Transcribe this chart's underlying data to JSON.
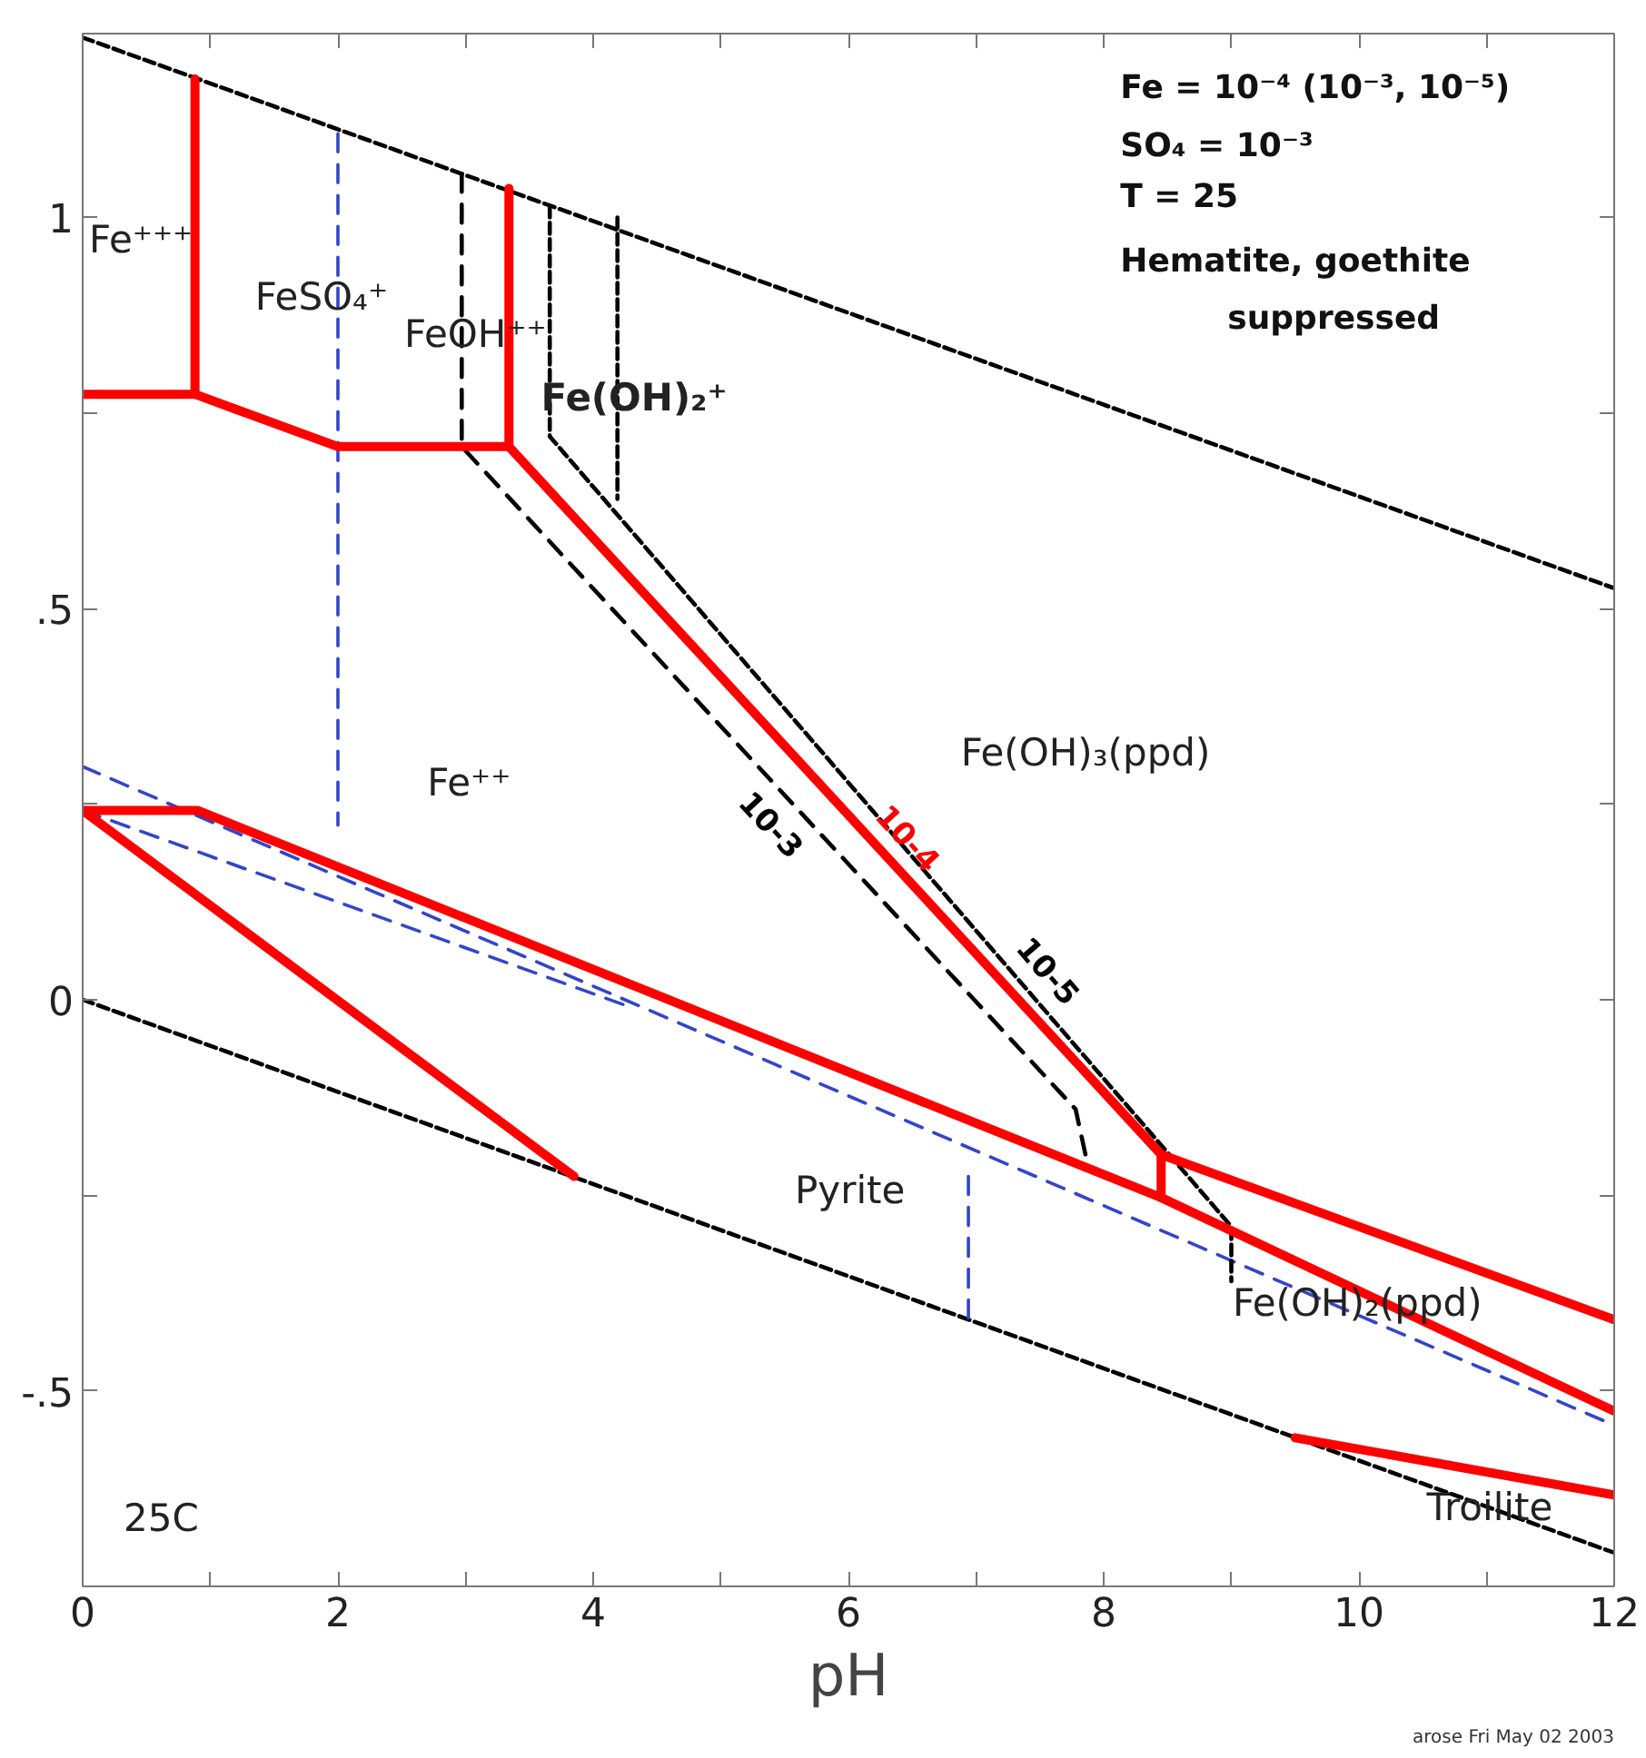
{
  "chart_data": {
    "type": "line",
    "xlabel": "pH",
    "xlim": [
      0,
      12
    ],
    "ylim": [
      -0.75,
      1.235
    ],
    "xticks": [
      0,
      {
        "value": 1,
        "label": null
      },
      2,
      {
        "value": 3,
        "label": null
      },
      4,
      {
        "value": 5,
        "label": null
      },
      6,
      {
        "value": 7,
        "label": null
      },
      8,
      {
        "value": 9,
        "label": null
      },
      10,
      {
        "value": 11,
        "label": null
      },
      12
    ],
    "yticks": [
      {
        "value": -0.75,
        "label": null
      },
      {
        "value": -0.5,
        "label": "-.5"
      },
      {
        "value": -0.25,
        "label": null
      },
      0,
      {
        "value": 0.25,
        "label": null
      },
      {
        "value": 0.5,
        "label": ".5"
      },
      {
        "value": 0.75,
        "label": null
      },
      1
    ],
    "grid": false,
    "series": [
      {
        "color": "#000000",
        "line_style": "dotted",
        "x": [
          0,
          12
        ],
        "values": [
          1.23,
          0.526
        ]
      },
      {
        "color": "#000000",
        "line_style": "dotted",
        "x": [
          0,
          12
        ],
        "values": [
          0,
          -0.707
        ]
      },
      {
        "color": "#3344cc",
        "line_style": "dashed",
        "x": [
          2,
          2
        ],
        "values": [
          1.107,
          0.223
        ]
      },
      {
        "color": "#3344cc",
        "line_style": "dashed",
        "x": [
          0,
          12
        ],
        "values": [
          0.298,
          -0.544
        ]
      },
      {
        "color": "#3344cc",
        "line_style": "dashed",
        "x": [
          0,
          4.3
        ],
        "values": [
          0.242,
          -0.01
        ]
      },
      {
        "color": "#3344cc",
        "line_style": "dashed",
        "x": [
          6.94,
          6.94
        ],
        "values": [
          -0.226,
          -0.41
        ]
      },
      {
        "name": "10-3",
        "color": "#000000",
        "line_style": "dashed",
        "x": [
          2.97,
          2.97,
          7.78,
          7.86
        ],
        "values": [
          1.056,
          0.707,
          -0.14,
          -0.2
        ]
      },
      {
        "name": "10-5",
        "color": "#000000",
        "line_style": "dotted",
        "x": [
          3.66,
          3.66,
          9.0,
          9.0
        ],
        "values": [
          1.014,
          0.72,
          -0.29,
          -0.36
        ]
      },
      {
        "color": "#000000",
        "line_style": "dotted",
        "x": [
          4.19,
          4.19
        ],
        "values": [
          1.0,
          0.64
        ]
      },
      {
        "color": "#ff0000",
        "line_style": "solid",
        "x": [
          0.88,
          0.88
        ],
        "values": [
          1.177,
          0.774
        ]
      },
      {
        "color": "#ff0000",
        "line_style": "solid",
        "x": [
          0,
          0.88,
          2,
          3.34
        ],
        "values": [
          0.774,
          0.774,
          0.707,
          0.707
        ]
      },
      {
        "color": "#ff0000",
        "line_style": "solid",
        "x": [
          3.34,
          3.34
        ],
        "values": [
          1.037,
          0.707
        ]
      },
      {
        "name": "10-4",
        "color": "#ff0000",
        "line_style": "solid",
        "x": [
          3.34,
          8.45
        ],
        "values": [
          0.707,
          -0.198
        ]
      },
      {
        "color": "#ff0000",
        "line_style": "solid",
        "x": [
          8.45,
          8.45
        ],
        "values": [
          -0.253,
          -0.198
        ]
      },
      {
        "color": "#ff0000",
        "line_style": "solid",
        "x": [
          8.45,
          12
        ],
        "values": [
          -0.198,
          -0.409
        ]
      },
      {
        "color": "#ff0000",
        "line_style": "solid",
        "x": [
          0,
          0.9,
          8.45,
          12
        ],
        "values": [
          0.242,
          0.242,
          -0.253,
          -0.526
        ]
      },
      {
        "color": "#ff0000",
        "line_style": "solid",
        "x": [
          0,
          3.85
        ],
        "values": [
          0.242,
          -0.226
        ]
      },
      {
        "color": "#ff0000",
        "line_style": "solid",
        "x": [
          9.5,
          12
        ],
        "values": [
          -0.56,
          -0.633
        ]
      }
    ],
    "annotations": [
      "Fe⁺⁺⁺",
      "FeSO₄⁺",
      "FeOH⁺⁺",
      "Fe(OH)₂⁺",
      "Fe⁺⁺",
      "Fe(OH)₃(ppd)",
      "Pyrite",
      "Fe(OH)₂(ppd)",
      "Troilite",
      "25C",
      "Fe = 10⁻⁴ (10⁻³, 10⁻⁵)",
      "SO₄ = 10⁻³",
      "T = 25",
      "Hematite, goethite",
      "suppressed",
      "arose Fri May 02 2003"
    ]
  }
}
